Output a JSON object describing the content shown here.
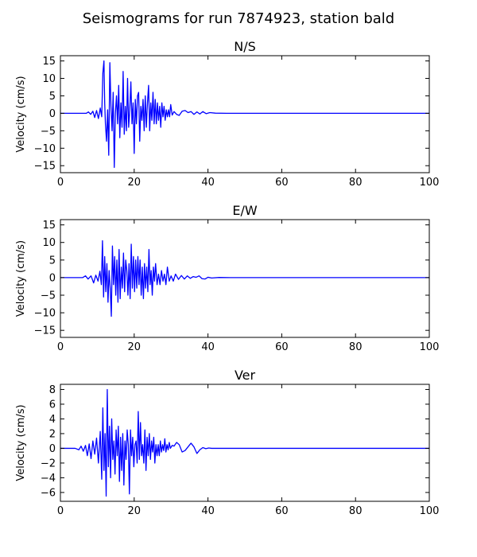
{
  "chart_title": "Seismograms for run 7874923, station bald",
  "line_color": "#0000ff",
  "chart_data": [
    {
      "type": "line",
      "title": "N/S",
      "xlabel": "",
      "ylabel": "Velocity (cm/s)",
      "xlim": [
        0,
        100
      ],
      "ylim": [
        -17,
        16.5
      ],
      "xticks": [
        0,
        20,
        40,
        60,
        80,
        100
      ],
      "yticks": [
        -15,
        -10,
        -5,
        0,
        5,
        10,
        15
      ],
      "grid": false,
      "series": [
        {
          "x": [
            0,
            7,
            7.6,
            8.2,
            8.8,
            9.3,
            9.8,
            10.3,
            10.8,
            11.2,
            11.5,
            11.8,
            12.0,
            12.2,
            12.5,
            12.8,
            13.1,
            13.4,
            13.7,
            14.0,
            14.3,
            14.6,
            14.9,
            15.2,
            15.5,
            15.8,
            16.1,
            16.4,
            16.7,
            17.0,
            17.3,
            17.6,
            17.9,
            18.2,
            18.5,
            18.8,
            19.1,
            19.4,
            19.7,
            20.0,
            20.3,
            20.6,
            20.9,
            21.2,
            21.5,
            21.8,
            22.1,
            22.4,
            22.7,
            23.0,
            23.3,
            23.6,
            23.9,
            24.2,
            24.5,
            24.8,
            25.1,
            25.4,
            25.7,
            26.0,
            26.3,
            26.6,
            26.9,
            27.2,
            27.5,
            27.8,
            28.1,
            28.4,
            28.7,
            29.0,
            29.3,
            29.6,
            29.9,
            30.3,
            30.8,
            31.5,
            32.2,
            33.0,
            33.8,
            34.6,
            35.4,
            36.2,
            37.0,
            37.8,
            38.6,
            39.5,
            40.5,
            42,
            45,
            100
          ],
          "y": [
            0,
            0,
            0.4,
            -0.3,
            0.6,
            -1.2,
            0.8,
            -1.5,
            1.5,
            -1.0,
            11.5,
            15,
            3,
            -3,
            -8,
            1,
            -12,
            14.5,
            2,
            -5,
            6,
            -15.5,
            0,
            5,
            -3,
            8,
            -7,
            3,
            -4,
            12,
            -6,
            2,
            -5,
            10,
            -4,
            1,
            9,
            -3,
            3,
            -11.5,
            4,
            -3,
            5,
            6,
            -8,
            2,
            -2,
            4,
            -5,
            5,
            -4,
            3,
            8,
            -5,
            3,
            -2,
            6,
            -3,
            4,
            -3,
            3,
            -2,
            2,
            -4,
            3,
            -1,
            2,
            -2,
            1,
            -1,
            1,
            -1,
            2.5,
            -0.5,
            0.5,
            -0.3,
            -0.6,
            0.6,
            0.8,
            0.2,
            0.5,
            -0.3,
            0.4,
            -0.2,
            0.5,
            -0.1,
            0.2,
            0.05,
            0,
            0
          ]
        }
      ]
    },
    {
      "type": "line",
      "title": "E/W",
      "xlabel": "",
      "ylabel": "Velocity (cm/s)",
      "xlim": [
        0,
        100
      ],
      "ylim": [
        -17,
        16.5
      ],
      "xticks": [
        0,
        20,
        40,
        60,
        80,
        100
      ],
      "yticks": [
        -15,
        -10,
        -5,
        0,
        5,
        10,
        15
      ],
      "grid": false,
      "series": [
        {
          "x": [
            0,
            6,
            6.8,
            7.5,
            8.3,
            9.0,
            9.6,
            10.2,
            10.7,
            11.1,
            11.4,
            11.7,
            12.0,
            12.3,
            12.6,
            12.9,
            13.2,
            13.5,
            13.8,
            14.1,
            14.4,
            14.7,
            15.0,
            15.3,
            15.6,
            15.9,
            16.2,
            16.5,
            16.8,
            17.1,
            17.4,
            17.7,
            18.0,
            18.3,
            18.6,
            18.9,
            19.2,
            19.5,
            19.8,
            20.1,
            20.4,
            20.7,
            21.0,
            21.3,
            21.6,
            21.9,
            22.2,
            22.5,
            22.8,
            23.1,
            23.4,
            23.7,
            24.0,
            24.3,
            24.6,
            24.9,
            25.2,
            25.5,
            25.8,
            26.2,
            26.6,
            27.0,
            27.4,
            27.8,
            28.2,
            28.6,
            29.0,
            29.5,
            30.0,
            30.6,
            31.2,
            32.0,
            32.8,
            33.6,
            34.4,
            35.2,
            36.0,
            36.8,
            37.6,
            38.4,
            39.2,
            40,
            41,
            43,
            46,
            100
          ],
          "y": [
            0,
            0,
            0.5,
            -0.4,
            0.5,
            -1.5,
            0.7,
            -1.0,
            1.8,
            -2,
            10.5,
            -5.5,
            6,
            -4,
            4,
            -7,
            2,
            -3,
            -11,
            9,
            -2,
            6,
            -5,
            5,
            -7,
            8,
            -6,
            3,
            -3,
            7,
            -4,
            5,
            2,
            -5,
            4,
            -6,
            9.5,
            -3,
            6,
            -4,
            5,
            -3,
            6,
            -2,
            5,
            -5,
            3,
            -6,
            4,
            -3,
            3,
            -4,
            8,
            -2,
            2,
            -5,
            3,
            -1,
            4,
            -2,
            1,
            -2,
            2,
            -1,
            1,
            -2,
            3,
            -1,
            0.5,
            -1,
            1,
            -0.5,
            0.6,
            -0.4,
            0.5,
            -0.2,
            0.3,
            0.1,
            0.5,
            -0.3,
            -0.4,
            0.1,
            -0.1,
            0.05,
            0,
            0
          ]
        }
      ]
    },
    {
      "type": "line",
      "title": "Ver",
      "xlabel": "",
      "ylabel": "Velocity (cm/s)",
      "xlim": [
        0,
        100
      ],
      "ylim": [
        -7.2,
        8.7
      ],
      "xticks": [
        0,
        20,
        40,
        60,
        80,
        100
      ],
      "yticks": [
        -6,
        -4,
        -2,
        0,
        2,
        4,
        6,
        8
      ],
      "grid": false,
      "series": [
        {
          "x": [
            0,
            4,
            5,
            5.6,
            6.2,
            6.8,
            7.3,
            7.8,
            8.3,
            8.8,
            9.3,
            9.8,
            10.3,
            10.8,
            11.2,
            11.5,
            11.8,
            12.1,
            12.4,
            12.7,
            13.0,
            13.3,
            13.6,
            13.9,
            14.2,
            14.5,
            14.8,
            15.1,
            15.4,
            15.7,
            16.0,
            16.3,
            16.6,
            16.9,
            17.2,
            17.5,
            17.8,
            18.1,
            18.4,
            18.7,
            19.0,
            19.3,
            19.6,
            19.9,
            20.2,
            20.5,
            20.8,
            21.1,
            21.4,
            21.7,
            22.0,
            22.3,
            22.6,
            22.9,
            23.2,
            23.5,
            23.8,
            24.1,
            24.4,
            24.7,
            25.0,
            25.3,
            25.6,
            25.9,
            26.2,
            26.5,
            26.8,
            27.1,
            27.4,
            27.7,
            28.0,
            28.3,
            28.6,
            28.9,
            29.2,
            29.5,
            29.8,
            30.3,
            30.8,
            31.5,
            32.2,
            33.0,
            33.8,
            34.6,
            35.4,
            36.2,
            37.0,
            37.8,
            38.6,
            39.4,
            40.2,
            41,
            42,
            44,
            48,
            100
          ],
          "y": [
            0,
            0,
            -0.2,
            0.3,
            -0.4,
            0.4,
            -1.0,
            0.6,
            -1.4,
            1.0,
            -0.8,
            1.4,
            -2.0,
            2.3,
            -4.2,
            5.5,
            -3.0,
            2.0,
            -6.5,
            8.0,
            -2.5,
            3.0,
            -4.0,
            4.0,
            -1.5,
            1.0,
            -3.5,
            2.5,
            -1.0,
            3.0,
            -4.5,
            1.5,
            -3.0,
            2.0,
            -5.0,
            1.0,
            -1.5,
            2.5,
            0.5,
            -6.2,
            2.5,
            -1.0,
            1.5,
            -2.5,
            0.5,
            1.0,
            -2.0,
            5.0,
            -1.5,
            3.5,
            -1.0,
            0.5,
            -2.0,
            2.5,
            -3.0,
            1.5,
            -1.0,
            2.0,
            -1.5,
            1.0,
            -0.5,
            1.5,
            -2.0,
            0.5,
            -1.0,
            0.5,
            -1.0,
            1.0,
            -0.5,
            0.5,
            -0.3,
            1.3,
            -0.5,
            0.5,
            -0.2,
            0.8,
            0,
            0.4,
            0.3,
            0.8,
            0.5,
            -0.5,
            -0.3,
            0.2,
            0.7,
            0.2,
            -0.7,
            -0.2,
            0.1,
            -0.05,
            0.05,
            0,
            0,
            0,
            0,
            0
          ]
        }
      ]
    }
  ]
}
